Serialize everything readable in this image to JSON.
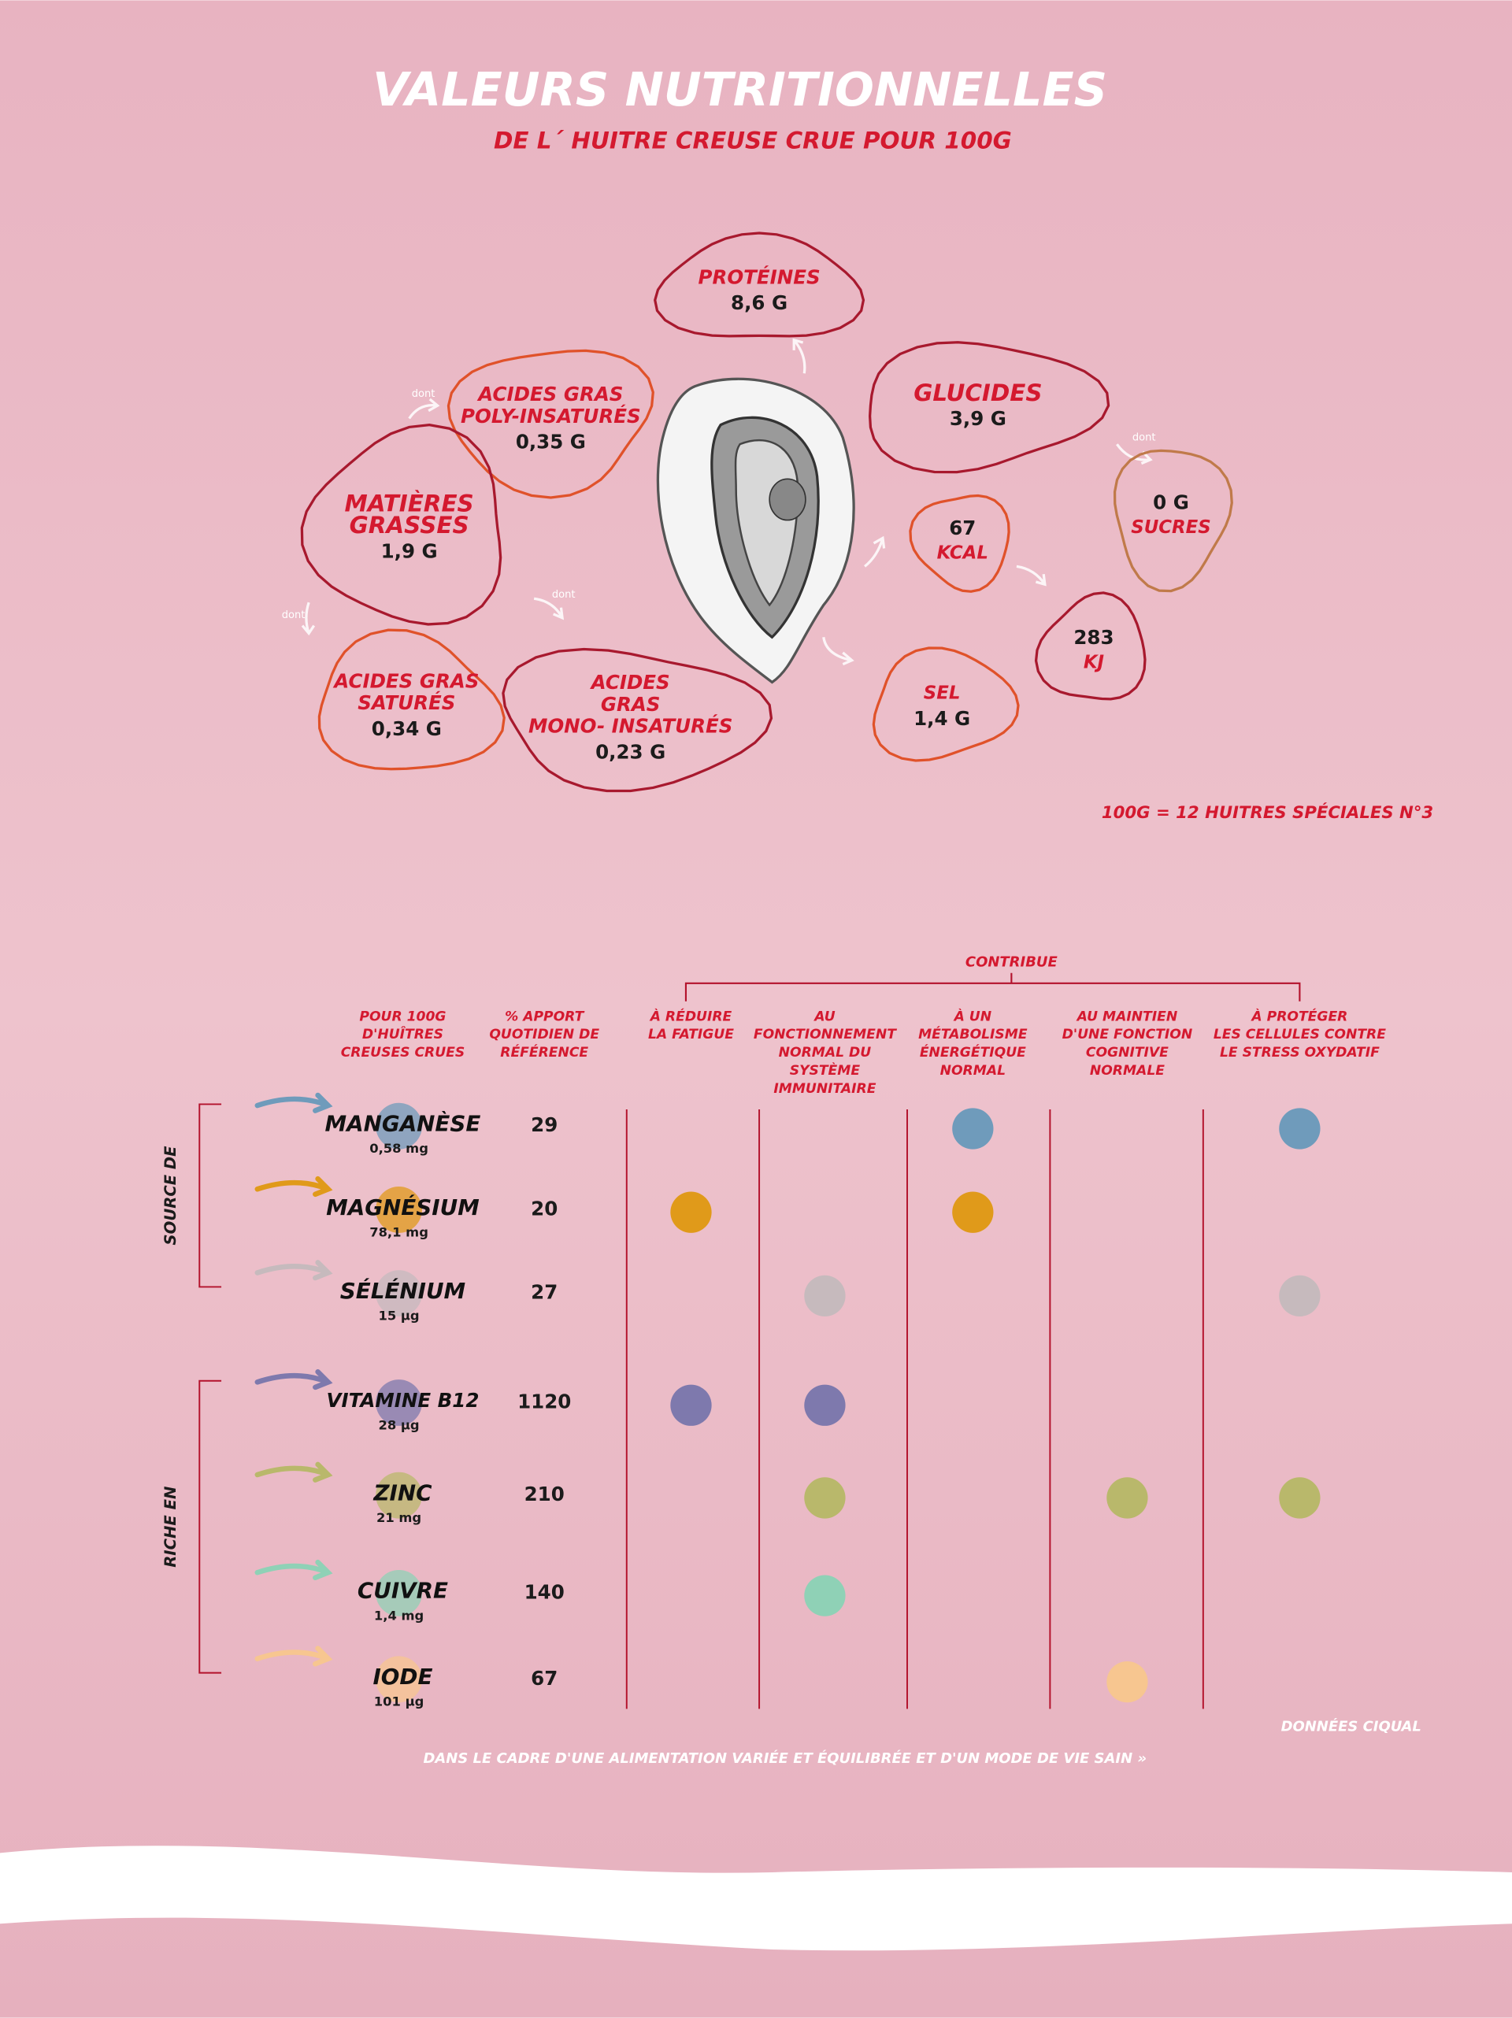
{
  "header": {
    "title": "VALEURS NUTRITIONNELLES",
    "subtitle": "DE L´ HUITRE CREUSE CRUE POUR 100G"
  },
  "nutrients": [
    {
      "label": [
        "PROTÉINES"
      ],
      "value": "8,6 G"
    },
    {
      "label": [
        "GLUCIDES"
      ],
      "value": "3,9 G"
    },
    {
      "label": [
        "ACIDES GRAS",
        "POLY-INSATURÉS"
      ],
      "value": "0,35 G"
    },
    {
      "label": [
        "MATIÈRES",
        "GRASSES"
      ],
      "value": "1,9 G"
    },
    {
      "label": [
        "ACIDES GRAS",
        "SATURÉS"
      ],
      "value": "0,34 G"
    },
    {
      "label": [
        "ACIDES",
        "GRAS",
        "MONO- INSATURÉS"
      ],
      "value": "0,23 G"
    },
    {
      "label": [
        "KCAL"
      ],
      "value": "67"
    },
    {
      "label": [
        "KJ"
      ],
      "value": "283"
    },
    {
      "label": [
        "SEL"
      ],
      "value": "1,4 G"
    },
    {
      "label": [
        "SUCRES"
      ],
      "value": "0 G"
    }
  ],
  "dont": [
    "dont",
    "dont",
    "dont",
    "dont"
  ],
  "note": "100G = 12 HUITRES SPÉCIALES N°3",
  "table": {
    "contribue": "CONTRIBUE",
    "columns": [
      [
        "POUR 100G",
        "D'HUÎTRES",
        "CREUSES CRUES"
      ],
      [
        "% APPORT",
        "QUOTIDIEN DE",
        "RÉFÉRENCE"
      ]
    ],
    "benefits": [
      [
        "À RÉDUIRE",
        "LA FATIGUE"
      ],
      [
        "AU",
        "FONCTIONNEMENT",
        "NORMAL DU",
        "SYSTÈME",
        "IMMUNITAIRE"
      ],
      [
        "À UN",
        "MÉTABOLISME",
        "ÉNERGÉTIQUE",
        "NORMAL"
      ],
      [
        "AU MAINTIEN",
        "D'UNE FONCTION",
        "COGNITIVE",
        "NORMALE"
      ],
      [
        "À PROTÉGER",
        "LES CELLULES CONTRE",
        "LE STRESS OXYDATIF"
      ]
    ],
    "groups": [
      {
        "label": "SOURCE DE",
        "rows": [
          {
            "name": "MANGANÈSE",
            "amount": "0,58 mg",
            "percent": 29,
            "color": "#6f9bbb",
            "contributes": [
              false,
              false,
              true,
              false,
              true
            ]
          },
          {
            "name": "MAGNÉSIUM",
            "amount": "78,1 mg",
            "percent": 20,
            "color": "#e09a1a",
            "contributes": [
              true,
              false,
              true,
              false,
              false
            ]
          },
          {
            "name": "SÉLÉNIUM",
            "amount": "15 µg",
            "percent": 27,
            "color": "#c6babd",
            "contributes": [
              false,
              true,
              false,
              false,
              true
            ]
          }
        ]
      },
      {
        "label": "RICHE EN",
        "rows": [
          {
            "name": "VITAMINE B12",
            "amount": "28 µg",
            "percent": 1120,
            "color": "#7e79ad",
            "contributes": [
              true,
              true,
              false,
              false,
              false
            ]
          },
          {
            "name": "ZINC",
            "amount": "21 mg",
            "percent": 210,
            "color": "#b9b86b",
            "contributes": [
              false,
              true,
              false,
              true,
              true
            ]
          },
          {
            "name": "CUIVRE",
            "amount": "1,4 mg",
            "percent": 140,
            "color": "#8fd1b6",
            "contributes": [
              false,
              true,
              false,
              false,
              false
            ]
          },
          {
            "name": "IODE",
            "amount": "101 µg",
            "percent": 67,
            "color": "#f7c690",
            "contributes": [
              false,
              false,
              false,
              true,
              false
            ]
          }
        ]
      }
    ]
  },
  "footer": {
    "source": "DONNÉES CIQUAL",
    "disclaimer": "DANS LE CADRE D'UNE ALIMENTATION VARIÉE ET ÉQUILIBRÉE ET D'UN MODE DE VIE SAIN »"
  }
}
